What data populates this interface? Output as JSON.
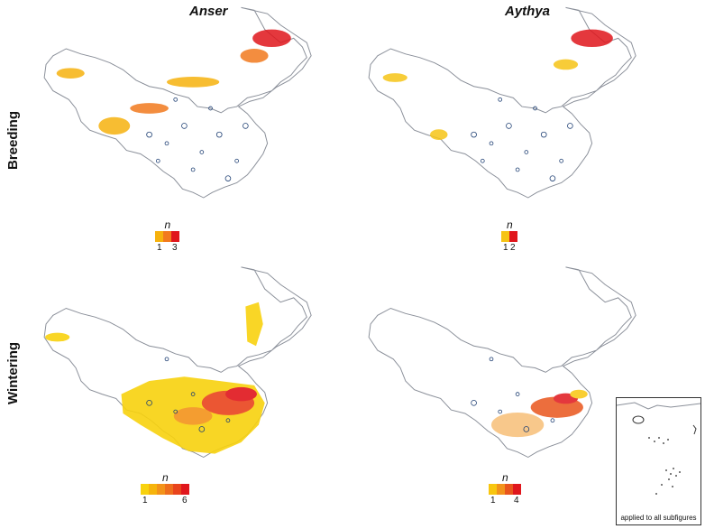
{
  "columns": [
    "Anser",
    "Aythya"
  ],
  "rows": [
    "Breeding",
    "Wintering"
  ],
  "panels": [
    {
      "genus": "Anser",
      "season": "Breeding",
      "legend": {
        "symbol": "n",
        "ticks": [
          "1",
          "3"
        ],
        "colors": [
          "#f6b20e",
          "#f27a1e",
          "#e0161c"
        ]
      }
    },
    {
      "genus": "Aythya",
      "season": "Breeding",
      "legend": {
        "symbol": "n",
        "ticks": [
          "1",
          "2"
        ],
        "colors": [
          "#f6c416",
          "#e0161c"
        ]
      }
    },
    {
      "genus": "Anser",
      "season": "Wintering",
      "legend": {
        "symbol": "n",
        "ticks": [
          "1",
          "6"
        ],
        "colors": [
          "#f8d20e",
          "#f6b40c",
          "#f3931a",
          "#ee6e1d",
          "#e9441d",
          "#e0161c"
        ]
      }
    },
    {
      "genus": "Aythya",
      "season": "Wintering",
      "legend": {
        "symbol": "n",
        "ticks": [
          "1",
          "4"
        ],
        "colors": [
          "#f8c60f",
          "#f2931b",
          "#e9551c",
          "#e0161c"
        ]
      }
    }
  ],
  "inset": {
    "label": "applied to all subfigures"
  },
  "colors": {
    "outline": "#8a8f99",
    "water": "#1e3f73"
  }
}
